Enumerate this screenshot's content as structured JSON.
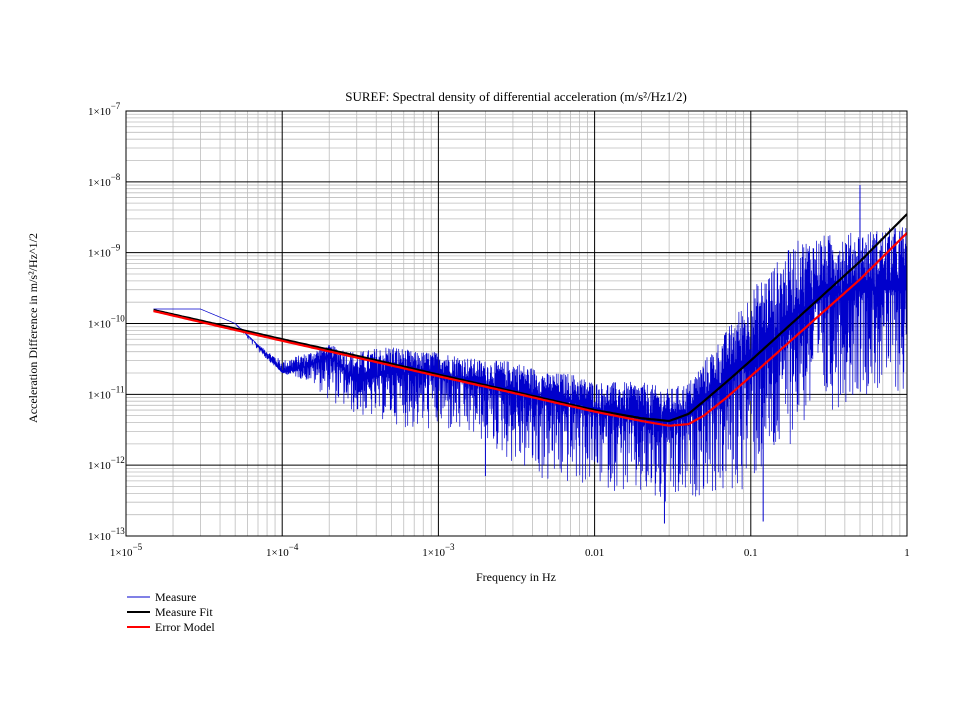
{
  "chart_data": {
    "type": "line",
    "title": "SUREF: Spectral density of differential acceleration (m/s²/Hz1/2)",
    "xlabel": "Frequency in Hz",
    "ylabel": "Acceleration Difference in m/s²/Hz^1/2",
    "x_scale": "log",
    "y_scale": "log",
    "xlim": [
      1e-05,
      1
    ],
    "ylim": [
      1e-13,
      1e-07
    ],
    "grid": true,
    "legend_position": "bottom-left, below plot",
    "x_ticks": [
      {
        "value": 1e-05,
        "base": "1×10",
        "exp": "−5"
      },
      {
        "value": 0.0001,
        "base": "1×10",
        "exp": "−4"
      },
      {
        "value": 0.001,
        "base": "1×10",
        "exp": "−3"
      },
      {
        "value": 0.01,
        "base": "0.01",
        "exp": ""
      },
      {
        "value": 0.1,
        "base": "0.1",
        "exp": ""
      },
      {
        "value": 1,
        "base": "1",
        "exp": ""
      }
    ],
    "y_ticks": [
      {
        "value": 1e-07,
        "base": "1×10",
        "exp": "−7"
      },
      {
        "value": 1e-08,
        "base": "1×10",
        "exp": "−8"
      },
      {
        "value": 1e-09,
        "base": "1×10",
        "exp": "−9"
      },
      {
        "value": 1e-10,
        "base": "1×10",
        "exp": "−10"
      },
      {
        "value": 1e-11,
        "base": "1×10",
        "exp": "−11"
      },
      {
        "value": 1e-12,
        "base": "1×10",
        "exp": "−12"
      },
      {
        "value": 1e-13,
        "base": "1×10",
        "exp": "−13"
      }
    ],
    "series": [
      {
        "name": "Measure",
        "color": "#0000cc",
        "style": "noisy",
        "x": [
          1.5e-05,
          2e-05,
          3e-05,
          5e-05,
          7e-05,
          0.0001,
          0.00015,
          0.0002,
          0.0003,
          0.0005,
          0.0007,
          0.001,
          0.002,
          0.003,
          0.005,
          0.007,
          0.01,
          0.015,
          0.02,
          0.03,
          0.04,
          0.05,
          0.07,
          0.1,
          0.15,
          0.2,
          0.3,
          0.5,
          0.7,
          1
        ],
        "y": [
          1.6e-10,
          1.6e-10,
          1.6e-10,
          1e-10,
          5e-11,
          2e-11,
          2.5e-11,
          3.5e-11,
          1.5e-11,
          2e-11,
          2e-11,
          2e-11,
          1.3e-11,
          1.1e-11,
          9e-12,
          8e-12,
          6e-12,
          5e-12,
          4.5e-12,
          4e-12,
          5e-12,
          8e-12,
          1.5e-11,
          3e-11,
          6e-11,
          1.5e-10,
          2.5e-10,
          3e-10,
          3e-10,
          3e-10
        ],
        "noise_decades": [
          0,
          0,
          0,
          0,
          0.05,
          0.1,
          0.2,
          0.3,
          0.4,
          0.5,
          0.55,
          0.6,
          0.7,
          0.8,
          0.9,
          1.0,
          1.0,
          1.1,
          1.1,
          1.2,
          1.3,
          1.4,
          1.4,
          1.5,
          1.5,
          1.6,
          1.6,
          1.6,
          1.6,
          1.6
        ],
        "upper_envelope_y": [
          1.6e-10,
          1.6e-10,
          1.6e-10,
          1e-10,
          5e-11,
          3e-11,
          4e-11,
          5e-11,
          4e-11,
          5e-11,
          4e-11,
          4e-11,
          3e-11,
          3e-11,
          2e-11,
          2e-11,
          1.5e-11,
          1.5e-11,
          1.5e-11,
          1.2e-11,
          1.5e-11,
          3e-11,
          8e-11,
          3e-10,
          8e-10,
          1.5e-09,
          1.8e-09,
          2e-09,
          2.2e-09,
          2.5e-09
        ],
        "lower_envelope_y": [
          1.6e-10,
          1.6e-10,
          1.6e-10,
          1e-10,
          4e-11,
          2e-11,
          1.5e-11,
          8e-12,
          5e-12,
          4e-12,
          3e-12,
          3e-12,
          2e-12,
          1e-12,
          5e-13,
          5e-13,
          5e-13,
          4e-13,
          3e-13,
          2e-13,
          3e-13,
          4e-13,
          3e-13,
          5e-13,
          1e-12,
          3e-12,
          5e-12,
          1e-11,
          1e-11,
          1e-11
        ],
        "spikes": [
          {
            "x": 0.5,
            "y": 9e-09
          },
          {
            "x": 0.028,
            "y": 1.5e-13
          },
          {
            "x": 0.12,
            "y": 1.6e-13
          },
          {
            "x": 0.002,
            "y": 7e-13
          }
        ]
      },
      {
        "name": "Measure Fit",
        "color": "#000000",
        "x": [
          1.5e-05,
          3e-05,
          0.0001,
          0.0003,
          0.001,
          0.003,
          0.01,
          0.02,
          0.03,
          0.04,
          0.05,
          0.07,
          0.1,
          0.2,
          0.5,
          1
        ],
        "y": [
          1.55e-10,
          1.1e-10,
          6e-11,
          3.5e-11,
          1.9e-11,
          1.1e-11,
          6e-12,
          4.6e-12,
          4.2e-12,
          5.3e-12,
          8e-12,
          1.5e-11,
          3e-11,
          1.2e-10,
          7.5e-10,
          3.5e-09
        ]
      },
      {
        "name": "Error Model",
        "color": "#ff0000",
        "x": [
          1.5e-05,
          3e-05,
          0.0001,
          0.0003,
          0.001,
          0.003,
          0.01,
          0.02,
          0.03,
          0.04,
          0.05,
          0.07,
          0.1,
          0.2,
          0.5,
          1
        ],
        "y": [
          1.5e-10,
          1.05e-10,
          5.7e-11,
          3.3e-11,
          1.8e-11,
          1.05e-11,
          5.7e-12,
          4.2e-12,
          3.6e-12,
          3.8e-12,
          5e-12,
          9e-12,
          1.8e-11,
          7e-11,
          4.2e-10,
          1.9e-09
        ]
      }
    ]
  }
}
